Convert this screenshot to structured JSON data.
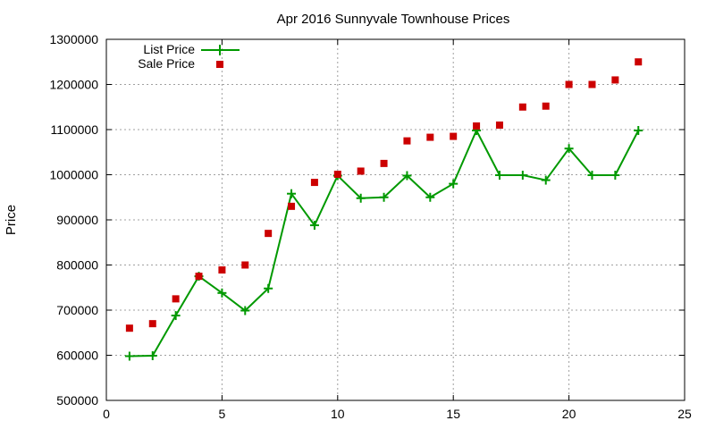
{
  "chart_data": {
    "type": "line",
    "title": "Apr 2016 Sunnyvale Townhouse Prices",
    "xlabel": "",
    "ylabel": "Price",
    "xlim": [
      0,
      25
    ],
    "ylim": [
      500000,
      1300000
    ],
    "xticks": [
      0,
      5,
      10,
      15,
      20,
      25
    ],
    "yticks": [
      500000,
      600000,
      700000,
      800000,
      900000,
      1000000,
      1100000,
      1200000,
      1300000
    ],
    "grid": true,
    "legend_position": "top-left",
    "series": [
      {
        "name": "List Price",
        "style": "line-with-plus-markers",
        "color": "#009900",
        "x": [
          1,
          2,
          3,
          4,
          5,
          6,
          7,
          8,
          9,
          10,
          11,
          12,
          13,
          14,
          15,
          16,
          17,
          18,
          19,
          20,
          21,
          22,
          23
        ],
        "y": [
          598000,
          599000,
          688000,
          775000,
          738000,
          699000,
          748000,
          958000,
          888000,
          998000,
          948000,
          950000,
          998000,
          950000,
          980000,
          1098000,
          999000,
          999000,
          988000,
          1058000,
          999000,
          999000,
          1098000
        ]
      },
      {
        "name": "Sale Price",
        "style": "square-markers",
        "color": "#cc0000",
        "x": [
          1,
          2,
          3,
          4,
          5,
          6,
          7,
          8,
          9,
          10,
          11,
          12,
          13,
          14,
          15,
          16,
          17,
          18,
          19,
          20,
          21,
          22,
          23
        ],
        "y": [
          660000,
          670000,
          725000,
          775000,
          789000,
          800000,
          870000,
          930000,
          983000,
          1001000,
          1008000,
          1025000,
          1075000,
          1083000,
          1085000,
          1108000,
          1110000,
          1150000,
          1152000,
          1200000,
          1200000,
          1210000,
          1250000
        ]
      }
    ]
  }
}
